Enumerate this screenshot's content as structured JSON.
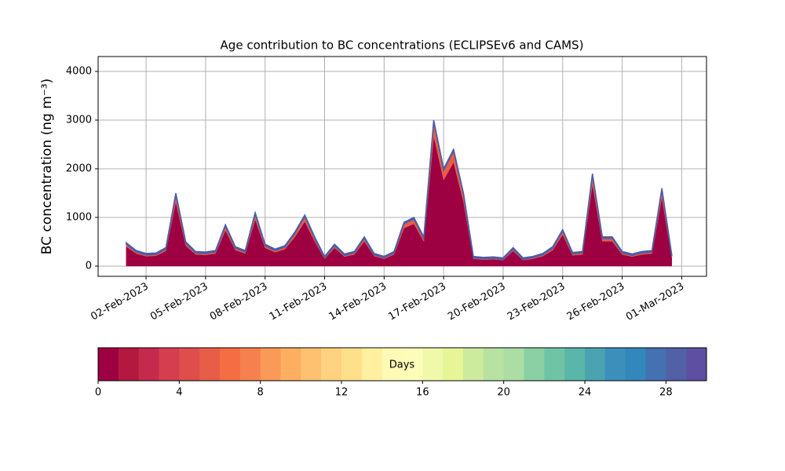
{
  "chart_data": {
    "type": "stacked_area",
    "title": "Age contribution to BC concentrations (ECLIPSEv6 and CAMS)",
    "y_label": "BC concentration (ng m⁻³)",
    "x": [
      "2023-02-01T00:00",
      "2023-02-01T12:00",
      "2023-02-02T00:00",
      "2023-02-02T12:00",
      "2023-02-03T00:00",
      "2023-02-03T12:00",
      "2023-02-04T00:00",
      "2023-02-04T12:00",
      "2023-02-05T00:00",
      "2023-02-05T12:00",
      "2023-02-06T00:00",
      "2023-02-06T12:00",
      "2023-02-07T00:00",
      "2023-02-07T12:00",
      "2023-02-08T00:00",
      "2023-02-08T12:00",
      "2023-02-09T00:00",
      "2023-02-09T12:00",
      "2023-02-10T00:00",
      "2023-02-10T12:00",
      "2023-02-11T00:00",
      "2023-02-11T12:00",
      "2023-02-12T00:00",
      "2023-02-12T12:00",
      "2023-02-13T00:00",
      "2023-02-13T12:00",
      "2023-02-14T00:00",
      "2023-02-14T12:00",
      "2023-02-15T00:00",
      "2023-02-15T12:00",
      "2023-02-16T00:00",
      "2023-02-16T12:00",
      "2023-02-17T00:00",
      "2023-02-17T12:00",
      "2023-02-18T00:00",
      "2023-02-18T12:00",
      "2023-02-19T00:00",
      "2023-02-19T12:00",
      "2023-02-20T00:00",
      "2023-02-20T12:00",
      "2023-02-21T00:00",
      "2023-02-21T12:00",
      "2023-02-22T00:00",
      "2023-02-22T12:00",
      "2023-02-23T00:00",
      "2023-02-23T12:00",
      "2023-02-24T00:00",
      "2023-02-24T12:00",
      "2023-02-25T00:00",
      "2023-02-25T12:00",
      "2023-02-26T00:00",
      "2023-02-26T12:00",
      "2023-02-27T00:00",
      "2023-02-27T12:00",
      "2023-02-28T00:00",
      "2023-02-28T12:00"
    ],
    "series": [
      {
        "color": "#9e0142",
        "values": [
          402,
          258,
          204,
          213,
          312,
          1320,
          420,
          240,
          231,
          258,
          735,
          330,
          258,
          960,
          375,
          285,
          348,
          600,
          915,
          510,
          150,
          375,
          195,
          240,
          510,
          204,
          150,
          240,
          780,
          870,
          510,
          2670,
          1770,
          2130,
          1320,
          150,
          132,
          141,
          123,
          312,
          123,
          150,
          204,
          330,
          645,
          222,
          240,
          1680,
          510,
          510,
          240,
          195,
          240,
          258,
          1410,
          177
        ]
      },
      {
        "color": "#e85d47",
        "values": [
          48,
          32,
          26,
          27,
          38,
          150,
          50,
          30,
          29,
          32,
          85,
          40,
          32,
          110,
          45,
          35,
          42,
          70,
          105,
          60,
          20,
          45,
          25,
          30,
          60,
          26,
          20,
          30,
          90,
          100,
          60,
          300,
          200,
          240,
          150,
          20,
          18,
          19,
          17,
          38,
          17,
          20,
          26,
          40,
          75,
          28,
          30,
          190,
          60,
          60,
          30,
          25,
          30,
          32,
          160,
          23
        ]
      },
      {
        "color": "#4a5ea8",
        "values": [
          30,
          30,
          30,
          30,
          30,
          30,
          30,
          30,
          30,
          30,
          30,
          30,
          30,
          30,
          30,
          30,
          30,
          30,
          30,
          30,
          30,
          30,
          30,
          30,
          30,
          30,
          30,
          30,
          30,
          30,
          30,
          30,
          30,
          30,
          30,
          30,
          30,
          30,
          30,
          30,
          30,
          30,
          30,
          30,
          30,
          30,
          30,
          30,
          30,
          30,
          30,
          30,
          30,
          30,
          30,
          30
        ]
      }
    ],
    "xlim": [
      "2023-01-30T14:00",
      "2023-03-02T06:00"
    ],
    "xticks": [
      {
        "value": "2023-02-02T00:00",
        "label": "02-Feb-2023"
      },
      {
        "value": "2023-02-05T00:00",
        "label": "05-Feb-2023"
      },
      {
        "value": "2023-02-08T00:00",
        "label": "08-Feb-2023"
      },
      {
        "value": "2023-02-11T00:00",
        "label": "11-Feb-2023"
      },
      {
        "value": "2023-02-14T00:00",
        "label": "14-Feb-2023"
      },
      {
        "value": "2023-02-17T00:00",
        "label": "17-Feb-2023"
      },
      {
        "value": "2023-02-20T00:00",
        "label": "20-Feb-2023"
      },
      {
        "value": "2023-02-23T00:00",
        "label": "23-Feb-2023"
      },
      {
        "value": "2023-02-26T00:00",
        "label": "26-Feb-2023"
      },
      {
        "value": "2023-03-01T00:00",
        "label": "01-Mar-2023"
      }
    ],
    "ylim": [
      -210,
      4306
    ],
    "yticks": [
      0,
      1000,
      2000,
      3000,
      4000
    ],
    "grid": true,
    "colorbar": {
      "label": "Days",
      "lim": [
        0,
        30
      ],
      "ticks": [
        0,
        4,
        8,
        12,
        16,
        20,
        24,
        28
      ],
      "colors": [
        "#9e0142",
        "#b3183f",
        "#c52a4c",
        "#d53e4f",
        "#df4e4b",
        "#e85d47",
        "#f46d43",
        "#f6804e",
        "#f99a58",
        "#fdae61",
        "#fdc170",
        "#fed280",
        "#fee08b",
        "#fff0a0",
        "#fffab5",
        "#fbfdb9",
        "#f0f8aa",
        "#e6f598",
        "#cdeb9c",
        "#b8e2a1",
        "#abdda4",
        "#8ad0a4",
        "#70c4a6",
        "#5ab6a8",
        "#4ba3b1",
        "#3d8fbb",
        "#3288bd",
        "#4471b2",
        "#5260a8",
        "#5e4fa2"
      ]
    }
  }
}
